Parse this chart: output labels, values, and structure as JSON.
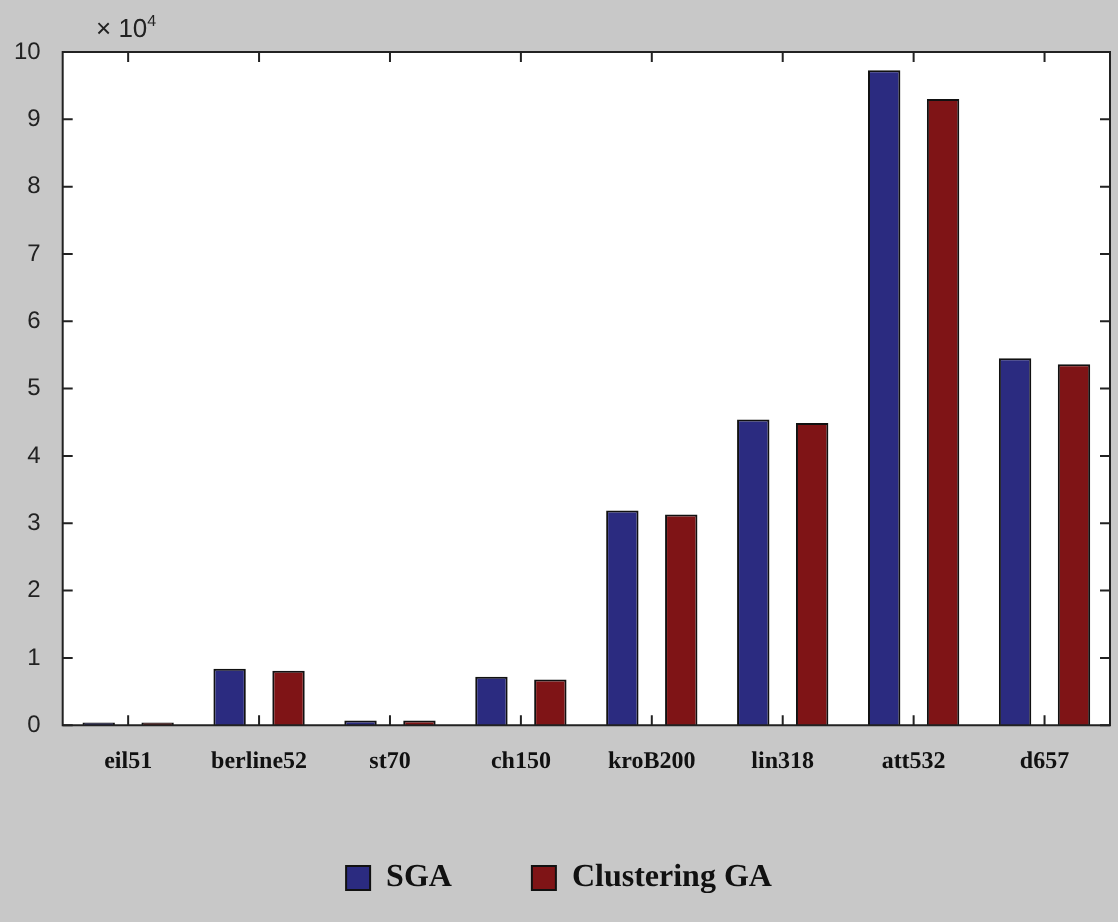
{
  "chart_data": {
    "type": "bar",
    "categories": [
      "eil51",
      "berline52",
      "st70",
      "ch150",
      "kroB200",
      "lin318",
      "att532",
      "d657"
    ],
    "series": [
      {
        "name": "SGA",
        "color": "#2b2b80",
        "values": [
          0.04,
          0.84,
          0.07,
          0.72,
          3.19,
          4.54,
          9.73,
          5.45
        ]
      },
      {
        "name": "Clustering GA",
        "color": "#7f1416",
        "values": [
          0.04,
          0.81,
          0.07,
          0.68,
          3.13,
          4.49,
          9.3,
          5.36
        ]
      }
    ],
    "ylim": [
      0,
      10
    ],
    "yticks": [
      0,
      1,
      2,
      3,
      4,
      5,
      6,
      7,
      8,
      9,
      10
    ],
    "grid": false,
    "legend": "bottom",
    "annotations": [
      "× 10$^{4}$"
    ]
  }
}
